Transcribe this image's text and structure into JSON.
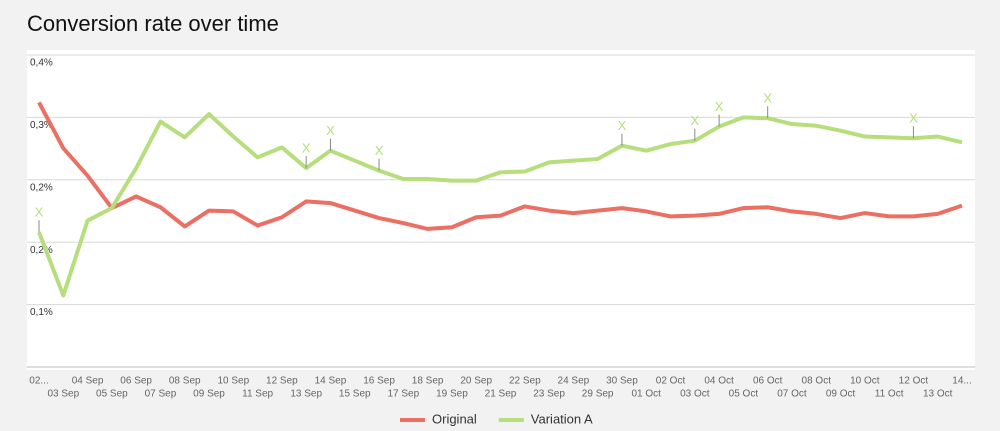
{
  "chart_data": {
    "type": "line",
    "title": "Conversion rate over time",
    "categories": [
      "02...",
      "03 Sep",
      "04 Sep",
      "05 Sep",
      "06 Sep",
      "07 Sep",
      "08 Sep",
      "09 Sep",
      "10 Sep",
      "11 Sep",
      "12 Sep",
      "13 Sep",
      "14 Sep",
      "15 Sep",
      "16 Sep",
      "17 Sep",
      "18 Sep",
      "19 Sep",
      "20 Sep",
      "21 Sep",
      "22 Sep",
      "23 Sep",
      "24 Sep",
      "29 Sep",
      "30 Sep",
      "01 Oct",
      "02 Oct",
      "03 Oct",
      "04 Oct",
      "05 Oct",
      "06 Oct",
      "07 Oct",
      "08 Oct",
      "09 Oct",
      "10 Oct",
      "11 Oct",
      "12 Oct",
      "13 Oct",
      "14..."
    ],
    "series": [
      {
        "name": "Original",
        "color": "#ec6f64",
        "values": [
          0.318,
          0.263,
          0.23,
          0.191,
          0.205,
          0.192,
          0.169,
          0.188,
          0.187,
          0.17,
          0.18,
          0.199,
          0.197,
          0.188,
          0.179,
          0.173,
          0.166,
          0.168,
          0.18,
          0.182,
          0.193,
          0.188,
          0.185,
          0.188,
          0.191,
          0.187,
          0.181,
          0.182,
          0.184,
          0.191,
          0.192,
          0.187,
          0.184,
          0.179,
          0.185,
          0.181,
          0.181,
          0.184,
          0.194
        ]
      },
      {
        "name": "Variation A",
        "color": "#b7de7c",
        "values": [
          0.162,
          0.086,
          0.176,
          0.191,
          0.239,
          0.295,
          0.276,
          0.304,
          0.277,
          0.252,
          0.264,
          0.239,
          0.26,
          0.248,
          0.236,
          0.226,
          0.226,
          0.224,
          0.224,
          0.234,
          0.235,
          0.246,
          0.248,
          0.25,
          0.266,
          0.26,
          0.268,
          0.272,
          0.289,
          0.3,
          0.299,
          0.292,
          0.29,
          0.284,
          0.277,
          0.276,
          0.275,
          0.277,
          0.27
        ]
      }
    ],
    "annotations": [
      {
        "x": "02...",
        "text": "X"
      },
      {
        "x": "13 Sep",
        "text": "X"
      },
      {
        "x": "14 Sep",
        "text": "X"
      },
      {
        "x": "16 Sep",
        "text": "X"
      },
      {
        "x": "30 Sep",
        "text": "X"
      },
      {
        "x": "03 Oct",
        "text": "X"
      },
      {
        "x": "04 Oct",
        "text": "X"
      },
      {
        "x": "06 Oct",
        "text": "X"
      },
      {
        "x": "12 Oct",
        "text": "X"
      }
    ],
    "ylim": [
      0,
      0.375
    ],
    "yticks": [
      {
        "value": 0.075,
        "label": "0,1%"
      },
      {
        "value": 0.15,
        "label": "0,2%"
      },
      {
        "value": 0.225,
        "label": "0,2%"
      },
      {
        "value": 0.3,
        "label": "0,3%"
      },
      {
        "value": 0.375,
        "label": "0,4%"
      }
    ],
    "grid": true,
    "legend": "bottom"
  }
}
